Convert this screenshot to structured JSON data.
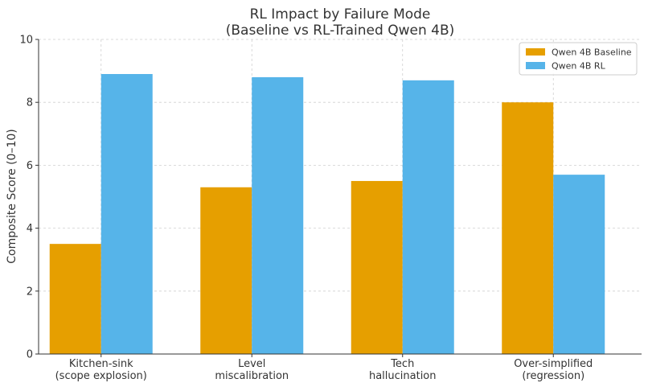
{
  "chart_data": {
    "type": "bar",
    "title": "RL Impact by Failure Mode\n(Baseline vs RL-Trained Qwen 4B)",
    "xlabel": "",
    "ylabel": "Composite Score (0–10)",
    "ylim": [
      0,
      10
    ],
    "yticks": [
      0,
      2,
      4,
      6,
      8,
      10
    ],
    "grid": true,
    "legend_position": "top-right",
    "categories": [
      "Kitchen-sink\n(scope explosion)",
      "Level\nmiscalibration",
      "Tech\nhallucination",
      "Over-simplified\n(regression)"
    ],
    "series": [
      {
        "name": "Qwen 4B Baseline",
        "color": "#E69F00",
        "values": [
          3.5,
          5.3,
          5.5,
          8.0
        ]
      },
      {
        "name": "Qwen 4B RL",
        "color": "#56B4E9",
        "values": [
          8.9,
          8.8,
          8.7,
          5.7
        ]
      }
    ]
  }
}
